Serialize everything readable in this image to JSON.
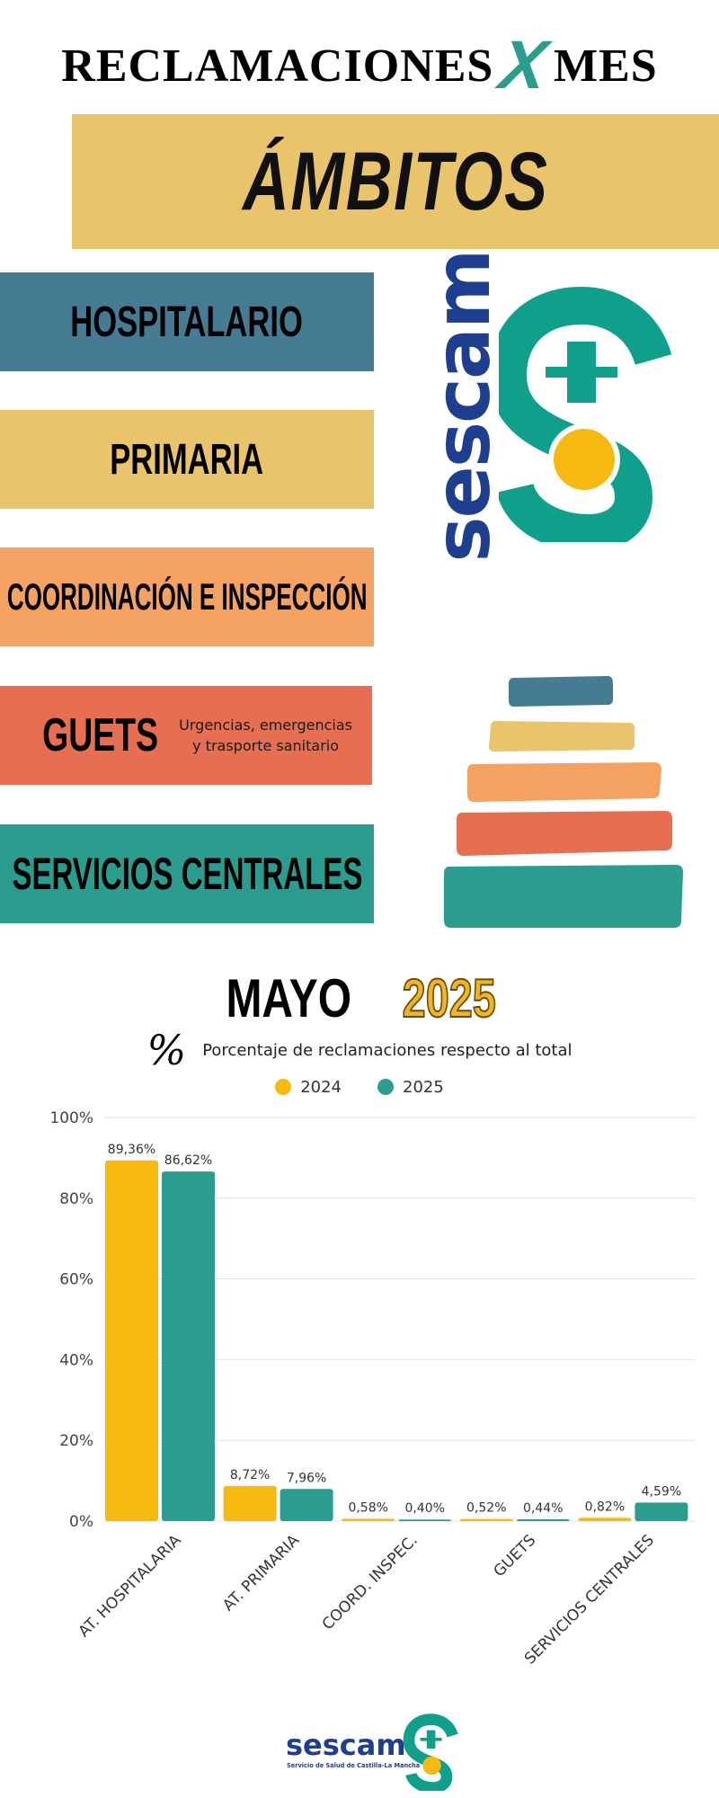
{
  "header": {
    "title_left": "RECLAMACIONES",
    "title_x": "X",
    "title_right": "MES",
    "banner": "ÁMBITOS"
  },
  "categories": {
    "hospitalario": "HOSPITALARIO",
    "primaria": "PRIMARIA",
    "coordinacion": "COORDINACIÓN E INSPECCIÓN",
    "guets": "GUETS",
    "guets_sub_1": "Urgencias, emergencias",
    "guets_sub_2": "y trasporte sanitario",
    "servicios": "SERVICIOS CENTRALES"
  },
  "logo": {
    "word": "sescam",
    "footer_word": "sescam",
    "footer_tagline": "Servicio de Salud de Castilla-La Mancha"
  },
  "colors": {
    "blue": "#457b93",
    "yellow": "#e9c46a",
    "orange": "#f4a261",
    "red": "#e76f51",
    "teal": "#2a9d8f",
    "series_2024": "#f5b90f",
    "series_2025": "#2a9d8f",
    "logo_blue": "#1e3f8f",
    "logo_green": "#0fa08c"
  },
  "chart_data": {
    "type": "bar",
    "month": "MAYO",
    "year": "2025",
    "percent_icon": "%",
    "subtitle": "Porcentaje de reclamaciones respecto al total",
    "categories": [
      "AT. HOSPITALARIA",
      "AT. PRIMARIA",
      "COORD. INSPEC.",
      "GUETS",
      "SERVICIOS CENTRALES"
    ],
    "series": [
      {
        "name": "2024",
        "values": [
          89.36,
          8.72,
          0.58,
          0.52,
          0.82
        ],
        "labels": [
          "89,36%",
          "8,72%",
          "0,58%",
          "0,52%",
          "0,82%"
        ]
      },
      {
        "name": "2025",
        "values": [
          86.62,
          7.96,
          0.4,
          0.44,
          4.59
        ],
        "labels": [
          "86,62%",
          "7,96%",
          "0,40%",
          "0,44%",
          "4,59%"
        ]
      }
    ],
    "ylim": [
      0,
      100
    ],
    "yticks": [
      0,
      20,
      40,
      60,
      80,
      100
    ],
    "ytick_labels": [
      "0%",
      "20%",
      "40%",
      "60%",
      "80%",
      "100%"
    ],
    "grid": true,
    "legend": "top-center"
  }
}
